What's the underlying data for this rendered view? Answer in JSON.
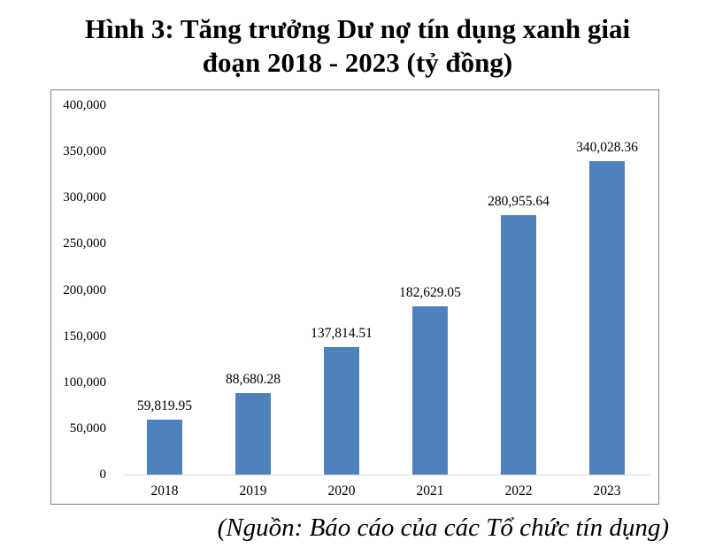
{
  "figure": {
    "title_line1": "Hình 3: Tăng trưởng Dư nợ tín dụng xanh giai",
    "title_line2": "đoạn 2018 - 2023 (tỷ đồng)",
    "source": "(Nguồn: Báo cáo của các Tổ chức tín dụng)"
  },
  "colors": {
    "bar": "#4f81bd",
    "frame": "#7f7f7f",
    "baseline": "#d9d9d9"
  },
  "y_ticks": [
    "400,000",
    "350,000",
    "300,000",
    "250,000",
    "200,000",
    "150,000",
    "100,000",
    "50,000",
    "0"
  ],
  "bars": [
    {
      "category": "2018",
      "label": "59,819.95"
    },
    {
      "category": "2019",
      "label": "88,680.28"
    },
    {
      "category": "2020",
      "label": "137,814.51"
    },
    {
      "category": "2021",
      "label": "182,629.05"
    },
    {
      "category": "2022",
      "label": "280,955.64"
    },
    {
      "category": "2023",
      "label": "340,028.36"
    }
  ],
  "chart_data": {
    "type": "bar",
    "title": "Hình 3: Tăng trưởng Dư nợ tín dụng xanh giai đoạn 2018 - 2023 (tỷ đồng)",
    "categories": [
      "2018",
      "2019",
      "2020",
      "2021",
      "2022",
      "2023"
    ],
    "values": [
      59819.95,
      88680.28,
      137814.51,
      182629.05,
      280955.64,
      340028.36
    ],
    "data_labels": [
      "59,819.95",
      "88,680.28",
      "137,814.51",
      "182,629.05",
      "280,955.64",
      "340,028.36"
    ],
    "xlabel": "",
    "ylabel": "",
    "ylim": [
      0,
      400000
    ],
    "yticks": [
      0,
      50000,
      100000,
      150000,
      200000,
      250000,
      300000,
      350000,
      400000
    ],
    "grid": false,
    "legend": "none",
    "bar_color": "#4f81bd",
    "source_note": "(Nguồn: Báo cáo của các Tổ chức tín dụng)"
  }
}
